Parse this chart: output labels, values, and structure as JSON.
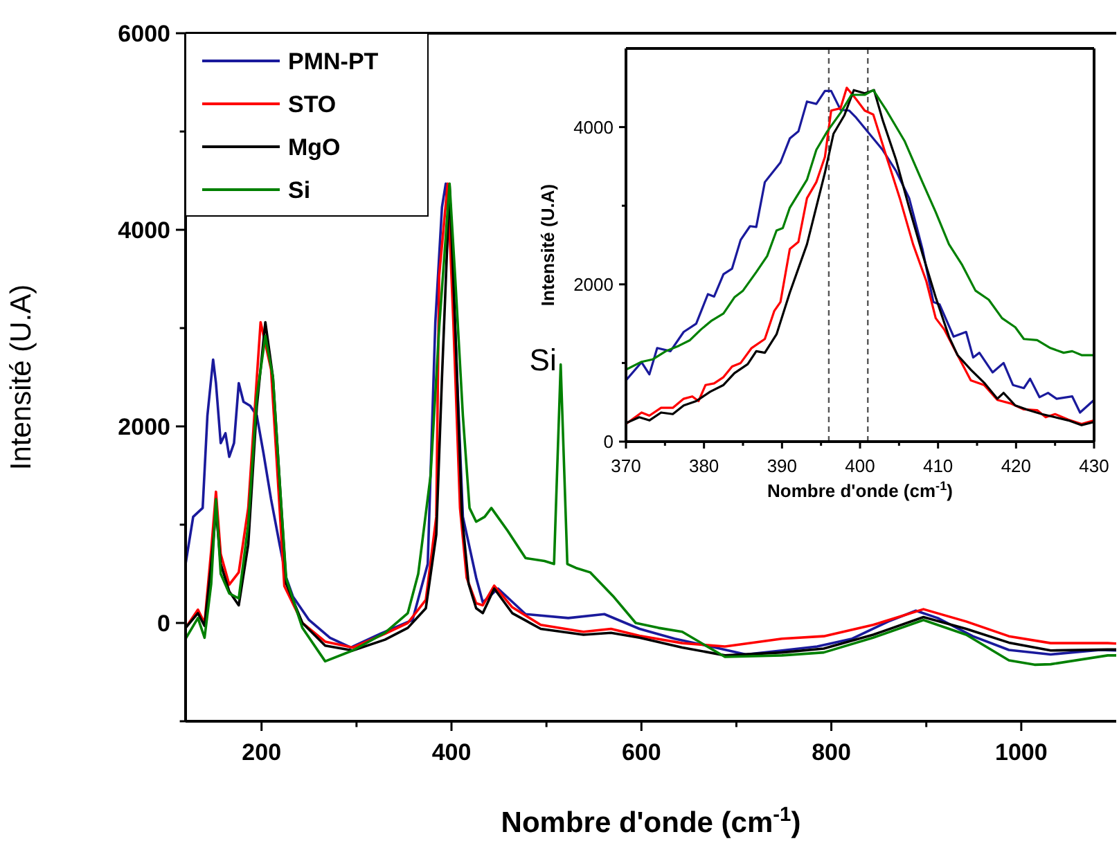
{
  "chart_data": [
    {
      "type": "line",
      "xlabel": "Nombre d'onde (cm$^{-1}$)",
      "ylabel": "Intensité (U.A)",
      "xlim": [
        120,
        1100
      ],
      "ylim": [
        -1000,
        6000
      ],
      "xticks": [
        200,
        {
          "value": 300,
          "label": null
        },
        400,
        {
          "value": 500,
          "label": null
        },
        600,
        {
          "value": 700,
          "label": null
        },
        800,
        {
          "value": 900,
          "label": null
        },
        1000
      ],
      "yticks": [
        {
          "value": -1000,
          "label": null
        },
        0,
        {
          "value": 1000,
          "label": null
        },
        2000,
        {
          "value": 3000,
          "label": null
        },
        4000,
        {
          "value": 5000,
          "label": null
        },
        6000
      ],
      "legend": "top left",
      "line_style": "solid",
      "marker": "none",
      "annotations": [
        {
          "text": "Si",
          "x": 515,
          "y": 2630
        }
      ],
      "series": [
        {
          "name": "PMN-PT",
          "color": "#1a1a9c",
          "x": [
            120,
            128,
            138,
            143,
            149,
            152,
            157,
            162,
            166,
            171,
            176,
            181,
            188,
            195,
            202,
            210,
            219,
            226,
            233,
            250,
            272,
            294,
            325,
            359,
            375,
            383,
            390,
            394,
            402,
            412,
            426,
            433,
            449,
            478,
            523,
            561,
            598,
            635,
            673,
            710,
            748,
            785,
            822,
            860,
            889,
            912,
            949,
            987,
            1031,
            1083,
            1100
          ],
          "values": [
            600,
            1080,
            1170,
            2110,
            2680,
            2440,
            1830,
            1930,
            1690,
            1830,
            2440,
            2250,
            2210,
            2110,
            1730,
            1260,
            800,
            460,
            270,
            30,
            -150,
            -250,
            -110,
            30,
            600,
            3060,
            4230,
            4470,
            3430,
            1080,
            460,
            210,
            350,
            90,
            50,
            90,
            -60,
            -160,
            -240,
            -320,
            -280,
            -240,
            -160,
            15,
            125,
            50,
            -135,
            -275,
            -320,
            -275,
            -280
          ]
        },
        {
          "name": "STO",
          "color": "#ff0000",
          "x": [
            120,
            133,
            140,
            147,
            152,
            157,
            166,
            176,
            186,
            195,
            199,
            210,
            219,
            224,
            243,
            267,
            296,
            330,
            354,
            373,
            384,
            387,
            396,
            402,
            409,
            416,
            426,
            433,
            445,
            464,
            494,
            539,
            568,
            598,
            643,
            688,
            748,
            792,
            844,
            897,
            942,
            987,
            1031,
            1091,
            1100
          ],
          "values": [
            -50,
            135,
            0,
            740,
            1335,
            700,
            390,
            515,
            1170,
            2490,
            3060,
            2580,
            1170,
            375,
            0,
            -190,
            -250,
            -110,
            0,
            235,
            1080,
            3530,
            4470,
            3060,
            1170,
            460,
            200,
            180,
            380,
            160,
            -20,
            -90,
            -60,
            -130,
            -205,
            -240,
            -160,
            -135,
            -20,
            140,
            15,
            -135,
            -205,
            -205,
            -210
          ]
        },
        {
          "name": "MgO",
          "color": "#000000",
          "x": [
            120,
            133,
            140,
            147,
            152,
            157,
            166,
            176,
            186,
            195,
            204,
            212,
            220,
            226,
            243,
            267,
            296,
            330,
            354,
            373,
            384,
            390,
            398,
            404,
            411,
            418,
            426,
            433,
            445,
            464,
            494,
            539,
            568,
            598,
            643,
            688,
            748,
            792,
            844,
            897,
            942,
            987,
            1031,
            1091,
            1100
          ],
          "values": [
            -50,
            100,
            -30,
            600,
            1150,
            600,
            320,
            180,
            800,
            2200,
            3060,
            2500,
            1300,
            400,
            0,
            -230,
            -280,
            -170,
            -50,
            150,
            900,
            2500,
            4450,
            3000,
            1100,
            400,
            150,
            100,
            350,
            100,
            -60,
            -120,
            -100,
            -150,
            -250,
            -330,
            -300,
            -260,
            -120,
            60,
            -60,
            -200,
            -280,
            -270,
            -270
          ]
        },
        {
          "name": "Si",
          "color": "#008000",
          "x": [
            120,
            133,
            140,
            147,
            152,
            157,
            166,
            176,
            186,
            195,
            204,
            212,
            220,
            226,
            243,
            267,
            296,
            330,
            354,
            365,
            378,
            387,
            398,
            404,
            412,
            419,
            426,
            435,
            442,
            459,
            478,
            498,
            508,
            515,
            522,
            531,
            546,
            570,
            594,
            618,
            643,
            688,
            748,
            792,
            844,
            897,
            942,
            987,
            1014,
            1031,
            1091,
            1100
          ],
          "values": [
            -160,
            50,
            -150,
            400,
            1260,
            500,
            300,
            250,
            1000,
            2300,
            2920,
            2500,
            1300,
            450,
            -50,
            -390,
            -280,
            -100,
            100,
            500,
            1500,
            3000,
            4470,
            3500,
            2110,
            1170,
            1030,
            1080,
            1170,
            940,
            660,
            630,
            600,
            2630,
            600,
            560,
            515,
            275,
            0,
            -50,
            -90,
            -345,
            -330,
            -300,
            -150,
            30,
            -120,
            -380,
            -425,
            -420,
            -330,
            -330
          ]
        }
      ]
    },
    {
      "type": "line",
      "xlabel": "Nombre d'onde (cm$^{-1}$)",
      "ylabel": "Intensité (U.A)",
      "xlim": [
        370,
        430
      ],
      "ylim": [
        0,
        5000
      ],
      "xticks": [
        370,
        {
          "value": 375,
          "label": null
        },
        380,
        {
          "value": 385,
          "label": null
        },
        390,
        {
          "value": 395,
          "label": null
        },
        400,
        {
          "value": 405,
          "label": null
        },
        410,
        {
          "value": 415,
          "label": null
        },
        420,
        {
          "value": 425,
          "label": null
        },
        430
      ],
      "yticks": [
        0,
        {
          "value": 1000,
          "label": null
        },
        2000,
        {
          "value": 3000,
          "label": null
        },
        4000
      ],
      "line_style": "solid",
      "marker": "none",
      "ref_lines": [
        {
          "axis": "x",
          "value": 396,
          "color": "#555555",
          "line_style": "dashed"
        },
        {
          "axis": "x",
          "value": 401,
          "color": "#555555",
          "line_style": "dashed"
        }
      ],
      "series": [
        {
          "color": "#1a1a9c",
          "x": [
            370,
            372,
            373,
            374,
            375.7,
            377.4,
            379,
            380.5,
            381.3,
            382.5,
            383.6,
            384.7,
            385.9,
            386.7,
            387.8,
            389.8,
            391,
            392.1,
            393.2,
            394.4,
            395.5,
            396.3,
            397.5,
            398.6,
            399.5,
            401.2,
            402.9,
            404.6,
            406.3,
            408,
            409.4,
            410.2,
            412,
            413.6,
            414.5,
            415.3,
            417,
            418.4,
            419.6,
            421,
            421.8,
            423,
            424.1,
            425.2,
            427.2,
            428.2,
            430
          ],
          "values": [
            780,
            1010,
            855,
            1190,
            1150,
            1395,
            1500,
            1875,
            1845,
            2130,
            2200,
            2565,
            2740,
            2730,
            3300,
            3550,
            3855,
            3945,
            4325,
            4295,
            4460,
            4460,
            4220,
            4210,
            4120,
            3915,
            3710,
            3445,
            3095,
            2450,
            1775,
            1745,
            1335,
            1395,
            1070,
            1130,
            880,
            1000,
            720,
            680,
            800,
            565,
            620,
            545,
            575,
            370,
            530
          ]
        },
        {
          "color": "#ff0000",
          "x": [
            370,
            372,
            373,
            374.5,
            376,
            377.4,
            378.5,
            379.3,
            380.2,
            381.3,
            382.5,
            383.6,
            384.7,
            386.1,
            387.8,
            389,
            389.8,
            391,
            392.1,
            393.2,
            394.4,
            395.5,
            396.3,
            397.5,
            398.3,
            399.5,
            400.6,
            401.7,
            403.4,
            405.1,
            406.8,
            408.5,
            409.7,
            410.8,
            412.5,
            414.2,
            415.9,
            417.6,
            419.3,
            421,
            422.7,
            423.8,
            425,
            426.7,
            428.4,
            430
          ],
          "values": [
            225,
            370,
            330,
            430,
            430,
            545,
            575,
            515,
            720,
            740,
            820,
            955,
            1000,
            1190,
            1305,
            1660,
            1775,
            2450,
            2540,
            3095,
            3300,
            3620,
            4210,
            4240,
            4500,
            4355,
            4210,
            4160,
            3620,
            3095,
            2510,
            2040,
            1570,
            1425,
            1100,
            780,
            720,
            530,
            485,
            410,
            400,
            310,
            350,
            280,
            225,
            270
          ]
        },
        {
          "color": "#000000",
          "x": [
            370,
            371.7,
            373,
            374.5,
            376,
            377.4,
            379,
            380.8,
            382.5,
            383.9,
            385.6,
            386.7,
            387.8,
            389.3,
            391,
            393.2,
            395.5,
            396.6,
            398,
            399.2,
            400.6,
            401.8,
            402.9,
            404.6,
            406.3,
            408,
            409.7,
            411.4,
            412.5,
            414.2,
            415.9,
            417.6,
            418.4,
            419.9,
            421.6,
            423.3,
            425,
            426.7,
            428.4,
            430
          ],
          "values": [
            235,
            310,
            270,
            370,
            350,
            460,
            515,
            635,
            720,
            870,
            985,
            1150,
            1130,
            1365,
            1895,
            2510,
            3420,
            3915,
            4150,
            4470,
            4430,
            4470,
            4090,
            3590,
            2975,
            2390,
            1835,
            1335,
            1100,
            915,
            750,
            545,
            620,
            460,
            400,
            350,
            310,
            270,
            210,
            250
          ]
        },
        {
          "color": "#008000",
          "x": [
            370,
            372,
            373.4,
            375.1,
            376.8,
            378.2,
            379.6,
            381,
            382.5,
            383.9,
            385,
            386.7,
            388.1,
            389.3,
            390.1,
            391,
            393.2,
            394.4,
            395.8,
            397.5,
            398.9,
            400.6,
            401.7,
            403.4,
            405.7,
            408,
            409.7,
            411.4,
            413.1,
            414.8,
            416.5,
            418.2,
            419.9,
            421,
            422.7,
            424.4,
            426.1,
            427.2,
            428.4,
            430
          ],
          "values": [
            915,
            1015,
            1045,
            1150,
            1220,
            1290,
            1425,
            1540,
            1630,
            1835,
            1920,
            2155,
            2360,
            2685,
            2715,
            2975,
            3330,
            3710,
            3945,
            4180,
            4410,
            4410,
            4470,
            4210,
            3825,
            3300,
            2920,
            2510,
            2245,
            1920,
            1805,
            1570,
            1455,
            1305,
            1290,
            1190,
            1130,
            1150,
            1100,
            1100
          ]
        }
      ]
    }
  ]
}
